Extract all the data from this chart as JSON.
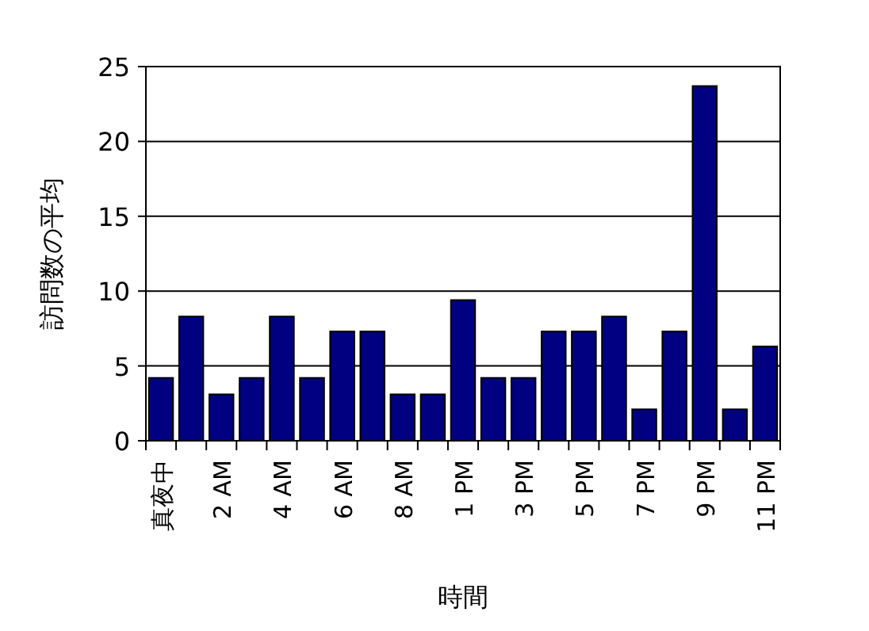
{
  "chart_data": {
    "type": "bar",
    "xlabel": "時間",
    "ylabel": "訪問数の平均",
    "categories": [
      "真夜中",
      null,
      "2 AM",
      null,
      "4 AM",
      null,
      "6 AM",
      null,
      "8 AM",
      null,
      "1 PM",
      null,
      "3 PM",
      null,
      "5 PM",
      null,
      "7 PM",
      null,
      "9 PM",
      null,
      "11 PM"
    ],
    "values": [
      4.2,
      8.3,
      3.1,
      4.2,
      8.3,
      4.2,
      7.3,
      7.3,
      3.1,
      3.1,
      9.4,
      4.2,
      4.2,
      7.3,
      7.3,
      8.3,
      2.1,
      7.3,
      23.7,
      2.1,
      6.3
    ],
    "color": "#000080",
    "ylim": [
      0,
      25
    ],
    "yticks": [
      0,
      5,
      10,
      15,
      20,
      25
    ],
    "grid": "y"
  }
}
